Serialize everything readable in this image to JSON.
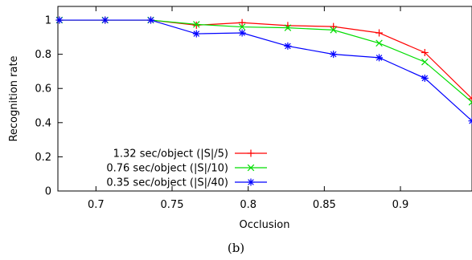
{
  "chart_data": {
    "type": "line",
    "xlabel": "Occlusion",
    "ylabel": "Recognition rate",
    "xlim": [
      0.675,
      0.947
    ],
    "ylim": [
      0,
      1.08
    ],
    "xticks": [
      0.7,
      0.75,
      0.8,
      0.85,
      0.9
    ],
    "xtick_labels": [
      "0.7",
      "0.75",
      "0.8",
      "0.85",
      "0.9"
    ],
    "yticks": [
      0,
      0.2,
      0.4,
      0.6,
      0.8,
      1
    ],
    "ytick_labels": [
      "0",
      "0.2",
      "0.4",
      "0.6",
      "0.8",
      "1"
    ],
    "grid": false,
    "legend_position": "bottom-left",
    "series": [
      {
        "name": "1.32 sec/object (|S|/5)",
        "color": "#ff0000",
        "marker": "plus",
        "x": [
          0.676,
          0.706,
          0.736,
          0.766,
          0.796,
          0.826,
          0.856,
          0.886,
          0.916,
          0.947
        ],
        "y": [
          1.0,
          1.0,
          1.0,
          0.97,
          0.985,
          0.968,
          0.962,
          0.925,
          0.81,
          0.54
        ]
      },
      {
        "name": "0.76 sec/object (|S|/10)",
        "color": "#00dd00",
        "marker": "x",
        "x": [
          0.676,
          0.706,
          0.736,
          0.766,
          0.796,
          0.826,
          0.856,
          0.886,
          0.916,
          0.947
        ],
        "y": [
          1.0,
          1.0,
          1.0,
          0.975,
          0.96,
          0.955,
          0.942,
          0.865,
          0.755,
          0.52
        ]
      },
      {
        "name": "0.35 sec/object (|S|/40)",
        "color": "#0000ff",
        "marker": "star",
        "x": [
          0.676,
          0.706,
          0.736,
          0.766,
          0.796,
          0.826,
          0.856,
          0.886,
          0.916,
          0.947
        ],
        "y": [
          1.0,
          1.0,
          1.0,
          0.92,
          0.925,
          0.848,
          0.8,
          0.78,
          0.66,
          0.41
        ]
      }
    ]
  },
  "caption": "(b)"
}
